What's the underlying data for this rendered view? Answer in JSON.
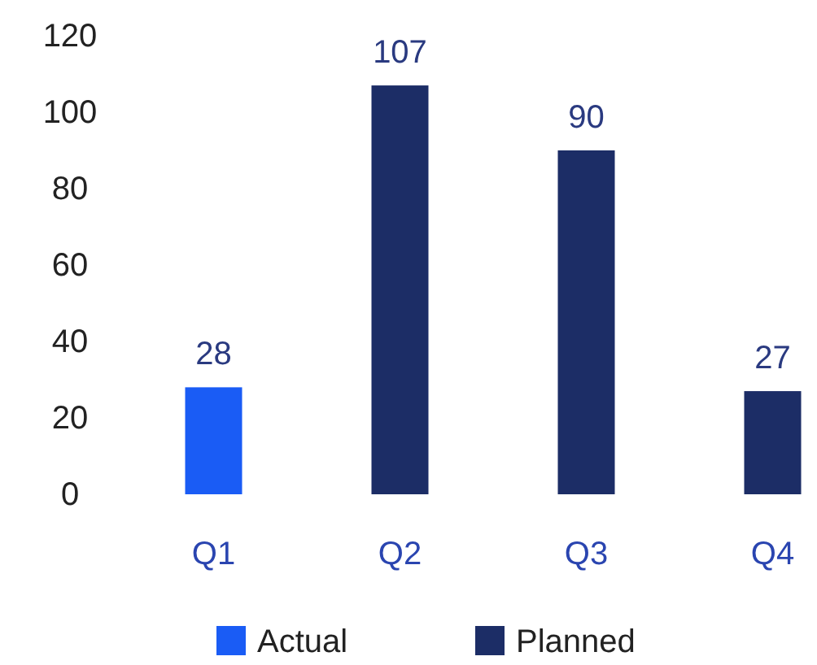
{
  "chart_data": {
    "type": "bar",
    "categories": [
      "Q1",
      "Q2",
      "Q3",
      "Q4"
    ],
    "series": [
      {
        "name": "Actual",
        "color": "#1a5cf5",
        "values": [
          28,
          null,
          null,
          null
        ]
      },
      {
        "name": "Planned",
        "color": "#1c2d66",
        "values": [
          null,
          107,
          90,
          27
        ]
      }
    ],
    "ylim": [
      0,
      120
    ],
    "yticks": [
      0,
      20,
      40,
      60,
      80,
      100,
      120
    ],
    "grid": false,
    "legend": "bottom",
    "data_labels": true
  }
}
